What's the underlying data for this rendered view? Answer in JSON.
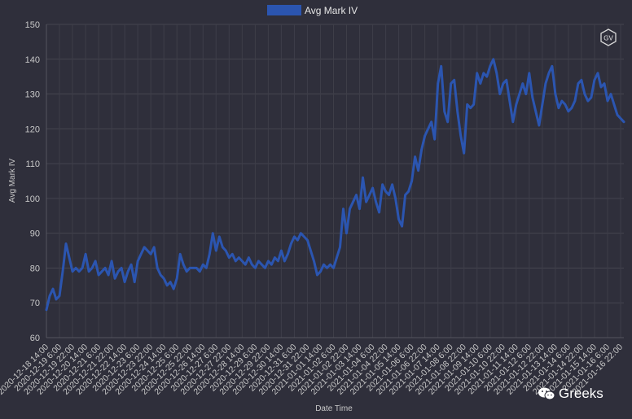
{
  "badge": {
    "text": "GV"
  },
  "watermark": {
    "text": "Greeks",
    "icon": "wechat-icon"
  },
  "chart_data": {
    "type": "line",
    "title": "",
    "xlabel": "Date Time",
    "ylabel": "Avg Mark IV",
    "ylim": [
      60,
      150
    ],
    "yticks": [
      60,
      70,
      80,
      90,
      100,
      110,
      120,
      130,
      140,
      150
    ],
    "grid": true,
    "legend_position": "top-center",
    "series": [
      {
        "name": "Avg Mark IV",
        "color": "#2b55b0",
        "x": [
          "2020-12-18 14:00",
          "2020-12-18 18:00",
          "2020-12-18 22:00",
          "2020-12-19 02:00",
          "2020-12-19 06:00",
          "2020-12-19 10:00",
          "2020-12-19 14:00",
          "2020-12-19 18:00",
          "2020-12-19 22:00",
          "2020-12-20 02:00",
          "2020-12-20 06:00",
          "2020-12-20 10:00",
          "2020-12-20 14:00",
          "2020-12-20 18:00",
          "2020-12-20 22:00",
          "2020-12-21 02:00",
          "2020-12-21 06:00",
          "2020-12-21 10:00",
          "2020-12-21 14:00",
          "2020-12-21 18:00",
          "2020-12-21 22:00",
          "2020-12-22 02:00",
          "2020-12-22 06:00",
          "2020-12-22 10:00",
          "2020-12-22 14:00",
          "2020-12-22 18:00",
          "2020-12-22 22:00",
          "2020-12-23 02:00",
          "2020-12-23 06:00",
          "2020-12-23 10:00",
          "2020-12-23 14:00",
          "2020-12-23 18:00",
          "2020-12-23 22:00",
          "2020-12-24 02:00",
          "2020-12-24 06:00",
          "2020-12-24 10:00",
          "2020-12-24 14:00",
          "2020-12-24 18:00",
          "2020-12-24 22:00",
          "2020-12-25 02:00",
          "2020-12-25 06:00",
          "2020-12-25 10:00",
          "2020-12-25 14:00",
          "2020-12-25 18:00",
          "2020-12-25 22:00",
          "2020-12-26 02:00",
          "2020-12-26 06:00",
          "2020-12-26 10:00",
          "2020-12-26 14:00",
          "2020-12-26 18:00",
          "2020-12-26 22:00",
          "2020-12-27 02:00",
          "2020-12-27 06:00",
          "2020-12-27 10:00",
          "2020-12-27 14:00",
          "2020-12-27 18:00",
          "2020-12-27 22:00",
          "2020-12-28 02:00",
          "2020-12-28 06:00",
          "2020-12-28 10:00",
          "2020-12-28 14:00",
          "2020-12-28 18:00",
          "2020-12-28 22:00",
          "2020-12-29 02:00",
          "2020-12-29 06:00",
          "2020-12-29 10:00",
          "2020-12-29 14:00",
          "2020-12-29 18:00",
          "2020-12-29 22:00",
          "2020-12-30 02:00",
          "2020-12-30 06:00",
          "2020-12-30 10:00",
          "2020-12-30 14:00",
          "2020-12-30 18:00",
          "2020-12-30 22:00",
          "2020-12-31 02:00",
          "2020-12-31 06:00",
          "2020-12-31 10:00",
          "2020-12-31 14:00",
          "2020-12-31 18:00",
          "2020-12-31 22:00",
          "2021-01-01 02:00",
          "2021-01-01 06:00",
          "2021-01-01 10:00",
          "2021-01-01 14:00",
          "2021-01-01 18:00",
          "2021-01-01 22:00",
          "2021-01-02 02:00",
          "2021-01-02 06:00",
          "2021-01-02 10:00",
          "2021-01-02 14:00",
          "2021-01-02 18:00",
          "2021-01-02 22:00",
          "2021-01-03 02:00",
          "2021-01-03 06:00",
          "2021-01-03 10:00",
          "2021-01-03 14:00",
          "2021-01-03 18:00",
          "2021-01-03 22:00",
          "2021-01-04 02:00",
          "2021-01-04 06:00",
          "2021-01-04 10:00",
          "2021-01-04 14:00",
          "2021-01-04 18:00",
          "2021-01-04 22:00",
          "2021-01-05 02:00",
          "2021-01-05 06:00",
          "2021-01-05 10:00",
          "2021-01-05 14:00",
          "2021-01-05 18:00",
          "2021-01-05 22:00",
          "2021-01-06 02:00",
          "2021-01-06 06:00",
          "2021-01-06 10:00",
          "2021-01-06 14:00",
          "2021-01-06 18:00",
          "2021-01-06 22:00",
          "2021-01-07 02:00",
          "2021-01-07 06:00",
          "2021-01-07 10:00",
          "2021-01-07 14:00",
          "2021-01-07 18:00",
          "2021-01-07 22:00",
          "2021-01-08 02:00",
          "2021-01-08 06:00",
          "2021-01-08 10:00",
          "2021-01-08 14:00",
          "2021-01-08 18:00",
          "2021-01-08 22:00",
          "2021-01-09 02:00",
          "2021-01-09 06:00",
          "2021-01-09 10:00",
          "2021-01-09 14:00",
          "2021-01-09 18:00",
          "2021-01-09 22:00",
          "2021-01-10 02:00",
          "2021-01-10 06:00",
          "2021-01-10 10:00",
          "2021-01-10 14:00",
          "2021-01-10 18:00",
          "2021-01-10 22:00",
          "2021-01-11 02:00",
          "2021-01-11 06:00",
          "2021-01-11 10:00",
          "2021-01-11 14:00",
          "2021-01-11 18:00",
          "2021-01-11 22:00",
          "2021-01-12 02:00",
          "2021-01-12 06:00",
          "2021-01-12 10:00",
          "2021-01-12 14:00",
          "2021-01-12 18:00",
          "2021-01-12 22:00",
          "2021-01-13 02:00",
          "2021-01-13 06:00",
          "2021-01-13 10:00",
          "2021-01-13 14:00",
          "2021-01-13 18:00",
          "2021-01-13 22:00",
          "2021-01-14 02:00",
          "2021-01-14 06:00",
          "2021-01-14 10:00",
          "2021-01-14 14:00",
          "2021-01-14 18:00",
          "2021-01-14 22:00",
          "2021-01-15 02:00",
          "2021-01-15 06:00",
          "2021-01-15 10:00",
          "2021-01-15 14:00",
          "2021-01-15 18:00",
          "2021-01-15 22:00",
          "2021-01-16 02:00",
          "2021-01-16 06:00",
          "2021-01-16 10:00",
          "2021-01-16 14:00",
          "2021-01-16 18:00",
          "2021-01-16 22:00",
          "2021-01-17 02:00"
        ],
        "values": [
          68,
          72,
          74,
          71,
          72,
          79,
          87,
          83,
          79,
          80,
          79,
          80,
          84,
          79,
          80,
          82,
          78,
          79,
          80,
          78,
          82,
          77,
          79,
          80,
          76,
          79,
          81,
          76,
          82,
          84,
          86,
          85,
          84,
          86,
          80,
          78,
          77,
          75,
          76,
          74,
          77,
          84,
          81,
          79,
          80,
          80,
          80,
          79,
          81,
          80,
          84,
          90,
          85,
          89,
          86,
          85,
          83,
          84,
          82,
          83,
          82,
          81,
          83,
          81,
          80,
          82,
          81,
          80,
          82,
          81,
          83,
          82,
          85,
          82,
          84,
          87,
          89,
          88,
          90,
          89,
          88,
          85,
          82,
          78,
          79,
          81,
          80,
          81,
          80,
          83,
          86,
          97,
          90,
          97,
          99,
          101,
          97,
          106,
          99,
          101,
          103,
          99,
          96,
          104,
          102,
          101,
          104,
          100,
          94,
          92,
          101,
          102,
          105,
          112,
          108,
          114,
          118,
          120,
          122,
          117,
          133,
          138,
          125,
          122,
          133,
          134,
          125,
          118,
          113,
          127,
          126,
          127,
          136,
          133,
          136,
          135,
          138,
          140,
          136,
          130,
          133,
          134,
          128,
          122,
          127,
          130,
          133,
          130,
          136,
          129,
          125,
          121,
          127,
          133,
          136,
          138,
          130,
          126,
          128,
          127,
          125,
          126,
          128,
          133,
          134,
          130,
          128,
          129,
          134,
          136,
          132,
          133,
          128,
          130,
          127,
          124,
          123,
          122
        ]
      }
    ],
    "x_tick_labels": [
      "2020-12-18 14:00",
      "2020-12-19 6:00",
      "2020-12-19 22:00",
      "2020-12-20 14:00",
      "2020-12-21 6:00",
      "2020-12-21 22:00",
      "2020-12-22 14:00",
      "2020-12-23 6:00",
      "2020-12-23 22:00",
      "2020-12-24 14:00",
      "2020-12-25 6:00",
      "2020-12-25 22:00",
      "2020-12-26 14:00",
      "2020-12-27 6:00",
      "2020-12-27 22:00",
      "2020-12-28 14:00",
      "2020-12-29 6:00",
      "2020-12-29 22:00",
      "2020-12-30 14:00",
      "2020-12-31 6:00",
      "2020-12-31 22:00",
      "2021-01-01 14:00",
      "2021-01-02 6:00",
      "2021-01-02 22:00",
      "2021-01-03 14:00",
      "2021-01-04 6:00",
      "2021-01-04 22:00",
      "2021-01-05 14:00",
      "2021-01-06 6:00",
      "2021-01-06 22:00",
      "2021-01-07 14:00",
      "2021-01-08 6:00",
      "2021-01-08 22:00",
      "2021-01-09 14:00",
      "2021-01-10 6:00",
      "2021-01-10 22:00",
      "2021-01-11 14:00",
      "2021-01-12 6:00",
      "2021-01-12 22:00",
      "2021-01-13 14:00",
      "2021-01-14 6:00",
      "2021-01-14 22:00",
      "2021-01-15 14:00",
      "2021-01-16 6:00",
      "2021-01-16 22:00"
    ]
  }
}
